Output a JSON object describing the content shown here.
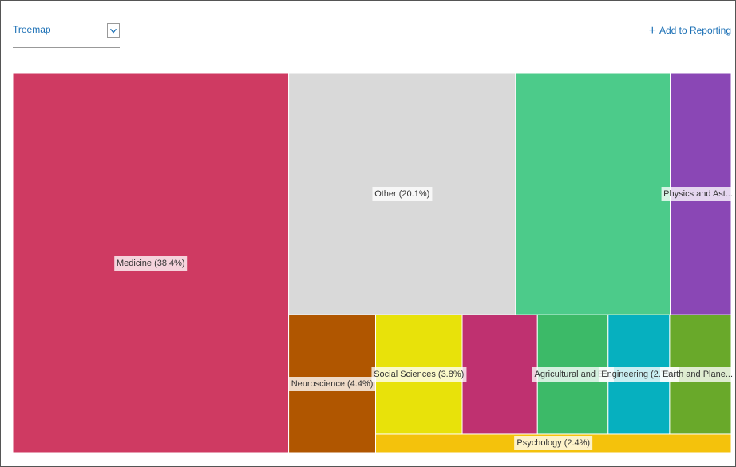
{
  "ui": {
    "view": "Treemap",
    "action": "Add to Reporting"
  },
  "chart_data": {
    "type": "treemap",
    "labels": [
      "Medicine (38.4%)",
      "Other (20.1%)",
      null,
      "Physics and Ast...",
      "Neuroscience (4.4%)",
      "Social Sciences (3.8%)",
      null,
      "Agricultural and B...",
      "Engineering (2.7%)",
      "Earth and Plane...",
      "Psychology (2.4%)"
    ],
    "values": [
      38.4,
      20.1,
      13.7,
      5.4,
      4.4,
      3.8,
      3.3,
      3.1,
      2.7,
      2.7,
      2.4
    ],
    "colors": [
      "#cf3a62",
      "#d9d9d9",
      "#4ccb8a",
      "#8a47b5",
      "#b05600",
      "#e8e20a",
      "#bf3170",
      "#3cba68",
      "#06b0bf",
      "#69a92a",
      "#f4c20c"
    ]
  }
}
